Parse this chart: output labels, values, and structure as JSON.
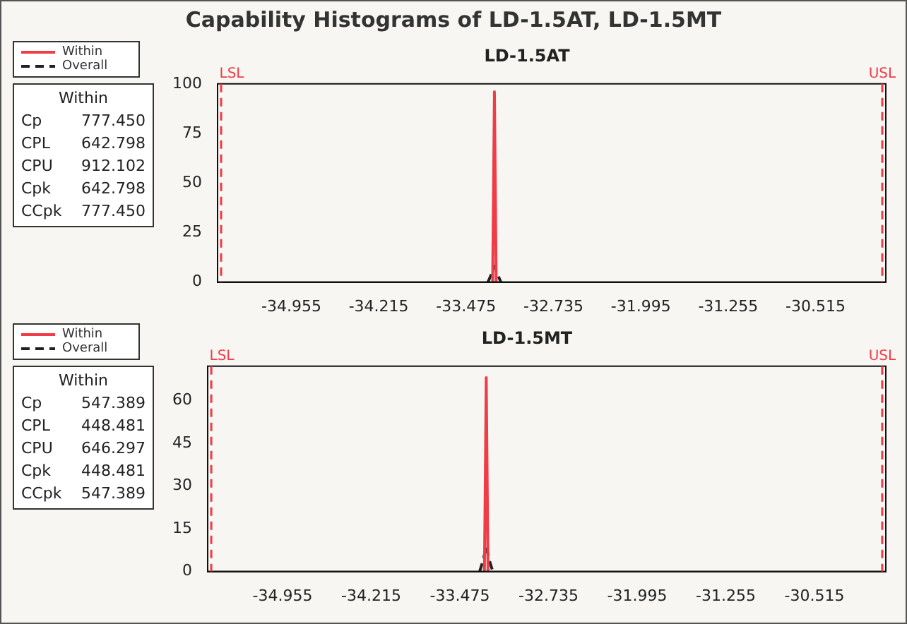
{
  "chart_data": [
    {
      "type": "line",
      "title": "Capability Histograms of LD-1.5AT, LD-1.5MT",
      "subtitle": "LD-1.5AT",
      "legend": "left",
      "xlim": [
        -35.58,
        -29.92
      ],
      "xticks": [
        -34.955,
        -34.215,
        -33.475,
        -32.735,
        -31.995,
        -31.255,
        -30.515
      ],
      "ylim": [
        0,
        100
      ],
      "yticks": [
        0,
        25,
        50,
        75,
        100
      ],
      "series": [
        {
          "name": "Within",
          "color": "#f03c46",
          "line_style": "solid",
          "x": [
            -33.25,
            -33.235,
            -33.22
          ],
          "values": [
            0,
            96,
            0
          ]
        },
        {
          "name": "Overall",
          "color": "#222222",
          "line_style": "dashed",
          "x": [
            -33.29,
            -33.26,
            -33.235,
            -33.21,
            -33.18
          ],
          "values": [
            0,
            4,
            8,
            4,
            0
          ]
        }
      ],
      "ref_lines": [
        {
          "axis": "x",
          "value": -35.55,
          "label": "LSL",
          "color": "#f03c46",
          "line_style": "dashed"
        },
        {
          "axis": "x",
          "value": -29.95,
          "label": "USL",
          "color": "#f03c46",
          "line_style": "dashed"
        }
      ],
      "annotations": [
        "Within",
        "Cp 777.450",
        "CPL 642.798",
        "CPU 912.102",
        "Cpk 642.798",
        "CCpk 777.450"
      ]
    },
    {
      "type": "line",
      "title": "LD-1.5MT",
      "legend": "left",
      "xlim": [
        -35.58,
        -29.92
      ],
      "xticks": [
        -34.955,
        -34.215,
        -33.475,
        -32.735,
        -31.995,
        -31.255,
        -30.515
      ],
      "ylim": [
        0,
        72
      ],
      "yticks": [
        0,
        15,
        30,
        45,
        60
      ],
      "series": [
        {
          "name": "Within",
          "color": "#f03c46",
          "line_style": "solid",
          "x": [
            -33.27,
            -33.255,
            -33.24
          ],
          "values": [
            0,
            68,
            0
          ]
        },
        {
          "name": "Overall",
          "color": "#222222",
          "line_style": "dashed",
          "x": [
            -33.31,
            -33.28,
            -33.255,
            -33.23,
            -33.2
          ],
          "values": [
            0,
            4,
            9,
            4,
            0
          ]
        }
      ],
      "ref_lines": [
        {
          "axis": "x",
          "value": -35.55,
          "label": "LSL",
          "color": "#f03c46",
          "line_style": "dashed"
        },
        {
          "axis": "x",
          "value": -29.95,
          "label": "USL",
          "color": "#f03c46",
          "line_style": "dashed"
        }
      ],
      "annotations": [
        "Within",
        "Cp 547.389",
        "CPL 448.481",
        "CPU 646.297",
        "Cpk 448.481",
        "CCpk 547.389"
      ]
    }
  ]
}
